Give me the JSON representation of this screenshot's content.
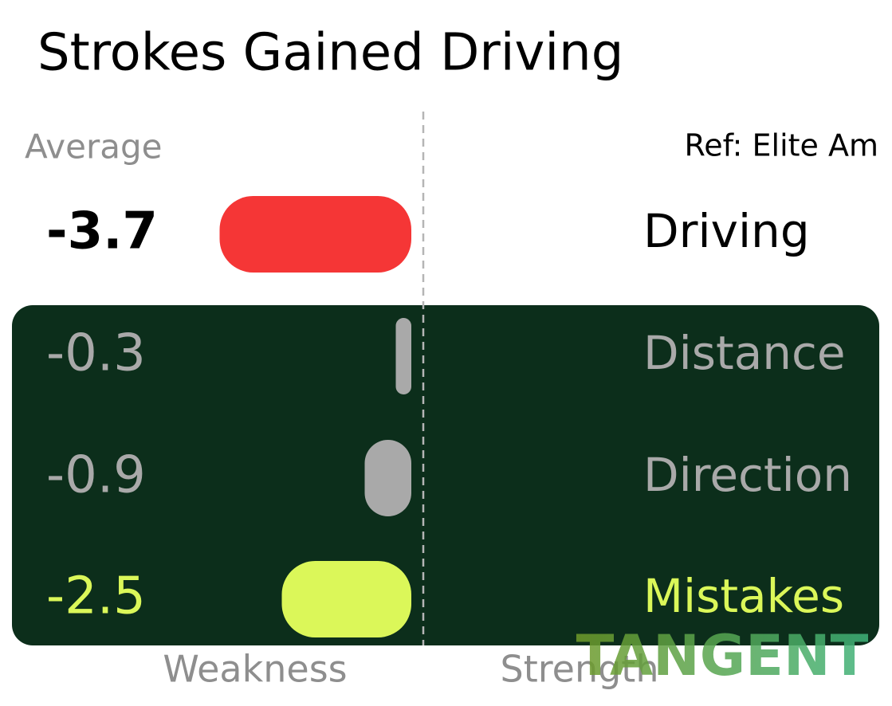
{
  "title": "Strokes Gained Driving",
  "baseline_label": "Average",
  "reference": "Ref: Elite Am",
  "rows": [
    {
      "label": "Driving",
      "value": -3.7,
      "color": "#f53636",
      "text_color": "#000000"
    },
    {
      "label": "Distance",
      "value": -0.3,
      "color": "#a9a9a9",
      "text_color": "#a9a9a9"
    },
    {
      "label": "Direction",
      "value": -0.9,
      "color": "#a9a9a9",
      "text_color": "#a9a9a9"
    },
    {
      "label": "Mistakes",
      "value": -2.5,
      "color": "#dbf759",
      "text_color": "#dbf759"
    }
  ],
  "axis_labels": {
    "left": "Weakness",
    "right": "Strength"
  },
  "watermark": "TANGENT"
}
